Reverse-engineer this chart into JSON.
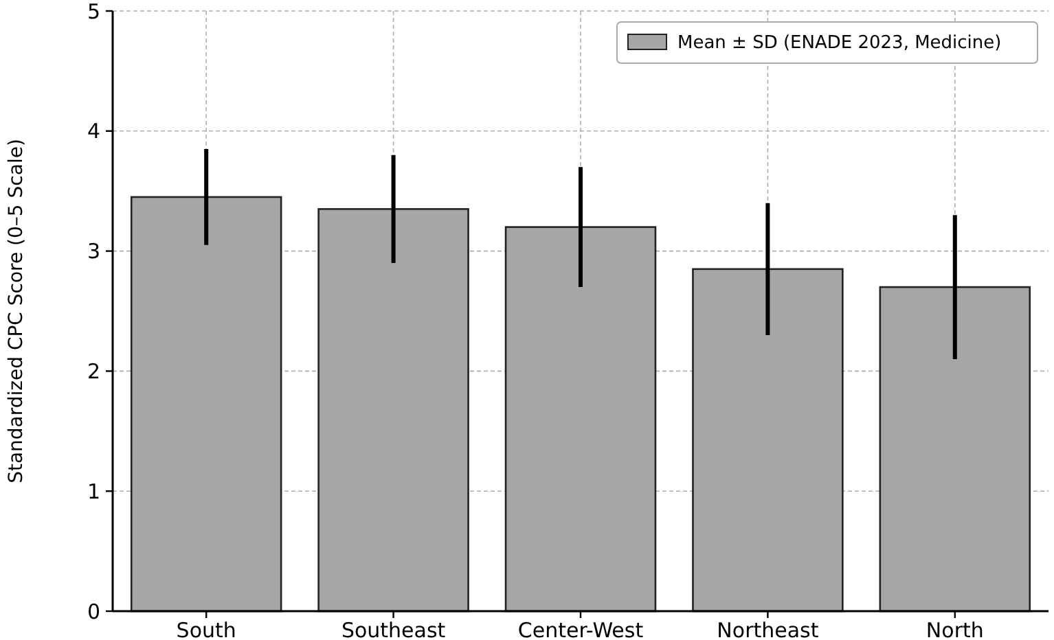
{
  "chart_data": {
    "type": "bar",
    "ylabel": "Standardized CPC Score (0–5 Scale)",
    "categories": [
      "South",
      "Southeast",
      "Center-West",
      "Northeast",
      "North"
    ],
    "series": [
      {
        "name": "Mean ± SD (ENADE 2023, Medicine)",
        "color": "#a6a6a6",
        "values": [
          3.45,
          3.35,
          3.2,
          2.85,
          2.7
        ],
        "errors": [
          0.4,
          0.45,
          0.5,
          0.55,
          0.6
        ]
      }
    ],
    "ylim": [
      0,
      5
    ],
    "yticks": [
      0,
      1,
      2,
      3,
      4,
      5
    ],
    "grid": true,
    "legend": "top right"
  }
}
